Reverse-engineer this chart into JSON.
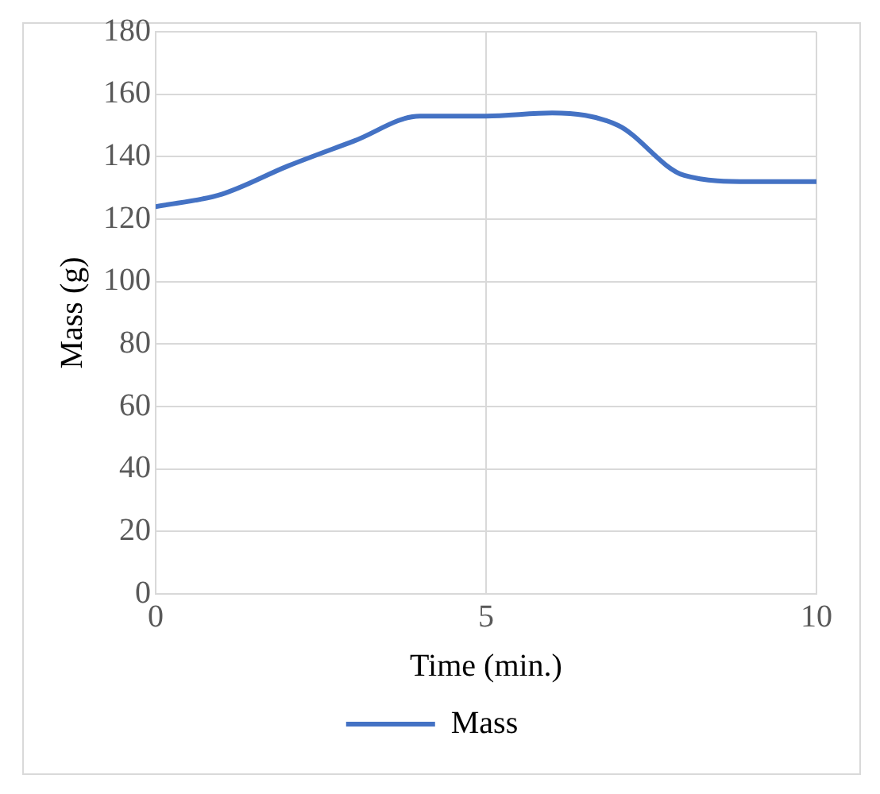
{
  "chart_data": {
    "type": "line",
    "xlabel": "Time (min.)",
    "ylabel": "Mass (g)",
    "x": [
      0,
      1,
      2,
      3,
      4,
      5,
      6,
      7,
      8,
      9,
      10
    ],
    "series": [
      {
        "name": "Mass",
        "color": "#4472c4",
        "values": [
          124,
          128,
          137,
          145,
          153,
          153,
          154,
          150,
          134,
          132,
          132
        ]
      }
    ],
    "xlim": [
      0,
      10
    ],
    "xticks": [
      0,
      5,
      10
    ],
    "ylim": [
      0,
      180
    ],
    "yticks": [
      0,
      20,
      40,
      60,
      80,
      100,
      120,
      140,
      160,
      180
    ],
    "grid": true,
    "legend": "bottom",
    "marker": "none",
    "line_style": "solid"
  }
}
